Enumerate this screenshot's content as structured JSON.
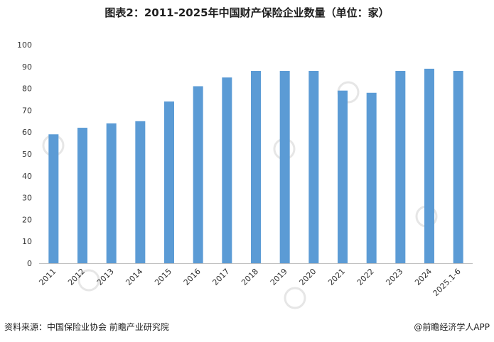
{
  "title": "图表2：2011-2025年中国财产保险企业数量（单位：家）",
  "source": "资料来源：中国保险业协会  前瞻产业研究院",
  "credit": "@前瞻经济学人APP",
  "colors": {
    "bar": "#5b9bd5",
    "axis": "#bfbfbf",
    "watermark": "#e6e6e6"
  },
  "chart_data": {
    "type": "bar",
    "title": "图表2：2011-2025年中国财产保险企业数量（单位：家）",
    "xlabel": "",
    "ylabel": "",
    "categories": [
      "2011",
      "2012",
      "2013",
      "2014",
      "2015",
      "2016",
      "2017",
      "2018",
      "2019",
      "2020",
      "2021",
      "2022",
      "2023",
      "2024",
      "2025.1-6"
    ],
    "values": [
      59,
      62,
      64,
      65,
      74,
      81,
      85,
      88,
      88,
      88,
      79,
      78,
      88,
      89,
      88
    ],
    "ylim": [
      0,
      100
    ],
    "yticks": [
      0,
      10,
      20,
      30,
      40,
      50,
      60,
      70,
      80,
      90,
      100
    ],
    "grid": false,
    "legend": "none"
  }
}
